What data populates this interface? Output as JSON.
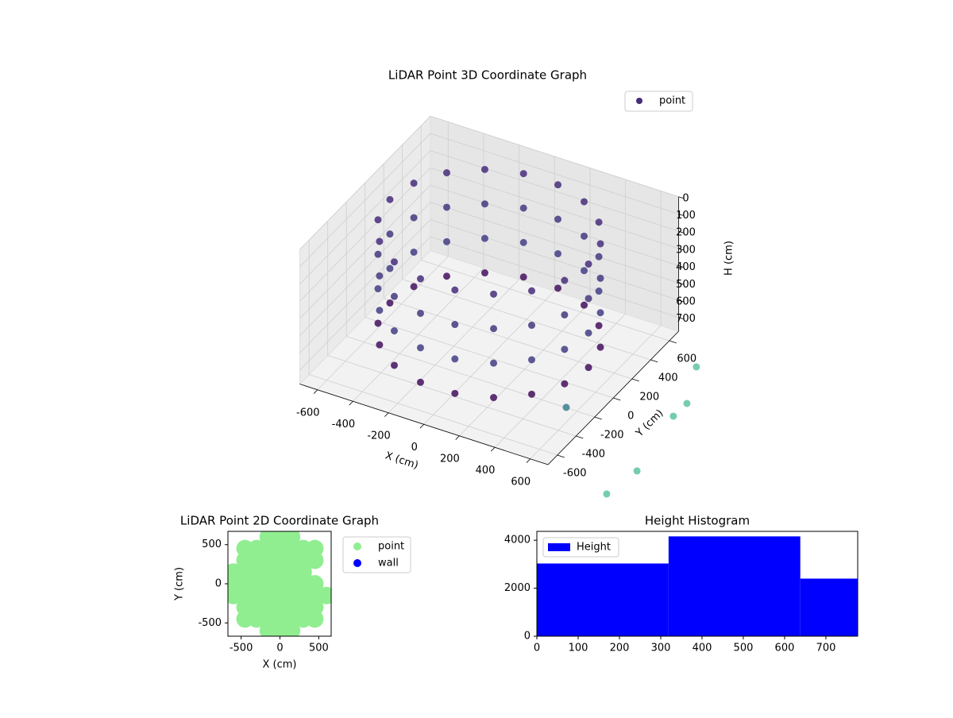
{
  "chart_data": [
    {
      "type": "scatter3d",
      "title": "LiDAR Point 3D Coordinate Graph",
      "x_label": "X (cm)",
      "y_label": "Y (cm)",
      "z_label": "H (cm)",
      "xlim": [
        -700,
        700
      ],
      "ylim": [
        -700,
        700
      ],
      "zlim": [
        0,
        780
      ],
      "z_inverted": true,
      "xticks": [
        -600,
        -400,
        -200,
        0,
        200,
        400,
        600
      ],
      "yticks": [
        -600,
        -400,
        -200,
        0,
        200,
        400,
        600
      ],
      "zticks": [
        0,
        100,
        200,
        300,
        400,
        500,
        600,
        700
      ],
      "legend": "upper right",
      "grid": true,
      "series": [
        {
          "name": "point",
          "color": "#472d7b",
          "x": [
            560,
            526,
            429,
            280,
            97,
            -97,
            -280,
            -429,
            -526,
            -560,
            -526,
            -429,
            -280,
            -97,
            97,
            280,
            429,
            526,
            560,
            526,
            429,
            280,
            97,
            -97,
            -280,
            -429,
            -526,
            -560,
            -526,
            -429,
            -280,
            -97,
            97,
            280,
            429,
            526,
            560,
            526,
            429,
            280,
            97,
            -97,
            -280,
            -429,
            -526,
            -560,
            -526,
            -429,
            -280,
            -97,
            97,
            280,
            429,
            526,
            560,
            526,
            429,
            280,
            97,
            -97,
            -280,
            -429,
            -526,
            -560,
            -526,
            -429,
            -280,
            -97,
            97,
            280,
            429,
            526,
            925,
            1033,
            1107,
            1074,
            538,
            1038
          ],
          "y": [
            0,
            192,
            360,
            485,
            552,
            552,
            485,
            360,
            192,
            0,
            -192,
            -360,
            -485,
            -552,
            -552,
            -485,
            -360,
            -192,
            0,
            192,
            360,
            485,
            552,
            552,
            485,
            360,
            192,
            0,
            -192,
            -360,
            -485,
            -552,
            -552,
            -485,
            -360,
            -192,
            0,
            192,
            360,
            485,
            552,
            552,
            485,
            360,
            192,
            0,
            -192,
            -360,
            -485,
            -552,
            -552,
            -485,
            -360,
            -192,
            0,
            192,
            360,
            485,
            552,
            552,
            485,
            360,
            192,
            0,
            -192,
            -360,
            -485,
            -552,
            -552,
            -485,
            -360,
            -192,
            462,
            10,
            -520,
            -782,
            -197,
            146
          ],
          "z": [
            50,
            50,
            50,
            50,
            50,
            50,
            50,
            50,
            50,
            50,
            50,
            50,
            50,
            50,
            50,
            50,
            50,
            50,
            250,
            250,
            250,
            250,
            250,
            250,
            250,
            250,
            250,
            250,
            250,
            250,
            250,
            250,
            250,
            250,
            250,
            250,
            450,
            450,
            450,
            450,
            450,
            450,
            450,
            450,
            450,
            450,
            450,
            450,
            450,
            450,
            450,
            450,
            450,
            450,
            650,
            650,
            650,
            650,
            650,
            650,
            650,
            650,
            650,
            650,
            650,
            650,
            650,
            650,
            650,
            650,
            650,
            650,
            780,
            780,
            780,
            780,
            780,
            780
          ],
          "colors": [
            "#472d7b",
            "#472d7b",
            "#472d7b",
            "#472d7b",
            "#472d7b",
            "#472d7b",
            "#472d7b",
            "#472d7b",
            "#472d7b",
            "#472d7b",
            "#472d7b",
            "#472d7b",
            "#472d7b",
            "#472d7b",
            "#472d7b",
            "#472d7b",
            "#472d7b",
            "#472d7b",
            "#45377f",
            "#45377f",
            "#45377f",
            "#45377f",
            "#45377f",
            "#45377f",
            "#45377f",
            "#45377f",
            "#45377f",
            "#45377f",
            "#45377f",
            "#45377f",
            "#45377f",
            "#45377f",
            "#45377f",
            "#45377f",
            "#45377f",
            "#45377f",
            "#433e85",
            "#433e85",
            "#433e85",
            "#433e85",
            "#433e85",
            "#433e85",
            "#433e85",
            "#433e85",
            "#433e85",
            "#433e85",
            "#433e85",
            "#433e85",
            "#433e85",
            "#433e85",
            "#433e85",
            "#433e85",
            "#433e85",
            "#433e85",
            "#440f5e",
            "#440f5e",
            "#440f5e",
            "#440f5e",
            "#440f5e",
            "#440f5e",
            "#440f5e",
            "#440f5e",
            "#440f5e",
            "#440f5e",
            "#440f5e",
            "#440f5e",
            "#440f5e",
            "#440f5e",
            "#440f5e",
            "#440f5e",
            "#440f5e",
            "#440f5e",
            "#5ec4a0",
            "#5ec4a0",
            "#5ec4a0",
            "#5ec4a0",
            "#3b7f8f",
            "#5ec4a0"
          ]
        }
      ]
    },
    {
      "type": "scatter",
      "title": "LiDAR Point 2D Coordinate Graph",
      "x_label": "X (cm)",
      "y_label": "Y (cm)",
      "xlim": [
        -670,
        660
      ],
      "ylim": [
        -670,
        670
      ],
      "xticks": [
        -500,
        0,
        500
      ],
      "yticks": [
        -500,
        0,
        500
      ],
      "legend": "outside right",
      "series": [
        {
          "name": "point",
          "color": "#90ee90",
          "x": [
            -150,
            0,
            150,
            -450,
            -300,
            -150,
            0,
            150,
            300,
            450,
            -450,
            -300,
            -150,
            0,
            150,
            300,
            450,
            -600,
            -450,
            -300,
            -150,
            0,
            150,
            300,
            -600,
            -450,
            -300,
            -150,
            0,
            150,
            300,
            450,
            -600,
            -450,
            -300,
            -150,
            0,
            150,
            300,
            450,
            600,
            -450,
            -300,
            -150,
            0,
            150,
            300,
            450,
            -450,
            -300,
            -150,
            0,
            150,
            300,
            450,
            -150,
            0,
            150
          ],
          "y": [
            600,
            600,
            600,
            450,
            450,
            450,
            450,
            450,
            450,
            450,
            300,
            300,
            300,
            300,
            300,
            300,
            300,
            150,
            150,
            150,
            150,
            150,
            150,
            150,
            0,
            0,
            0,
            0,
            0,
            0,
            0,
            0,
            -150,
            -150,
            -150,
            -150,
            -150,
            -150,
            -150,
            -150,
            -150,
            -300,
            -300,
            -300,
            -300,
            -300,
            -300,
            -300,
            -450,
            -450,
            -450,
            -450,
            -450,
            -450,
            -450,
            -600,
            -600,
            -600
          ]
        },
        {
          "name": "wall",
          "color": "#0000ff",
          "x": [],
          "y": []
        }
      ]
    },
    {
      "type": "histogram",
      "title": "Height Histogram",
      "bins": [
        0,
        319,
        638,
        777
      ],
      "values": [
        3030,
        4160,
        2400
      ],
      "series_name": "Height",
      "color": "#0000ff",
      "xlim": [
        0,
        777
      ],
      "ylim": [
        0,
        4370
      ],
      "xticks": [
        0,
        100,
        200,
        300,
        400,
        500,
        600,
        700
      ],
      "yticks": [
        0,
        2000,
        4000
      ],
      "legend": "upper left"
    }
  ]
}
